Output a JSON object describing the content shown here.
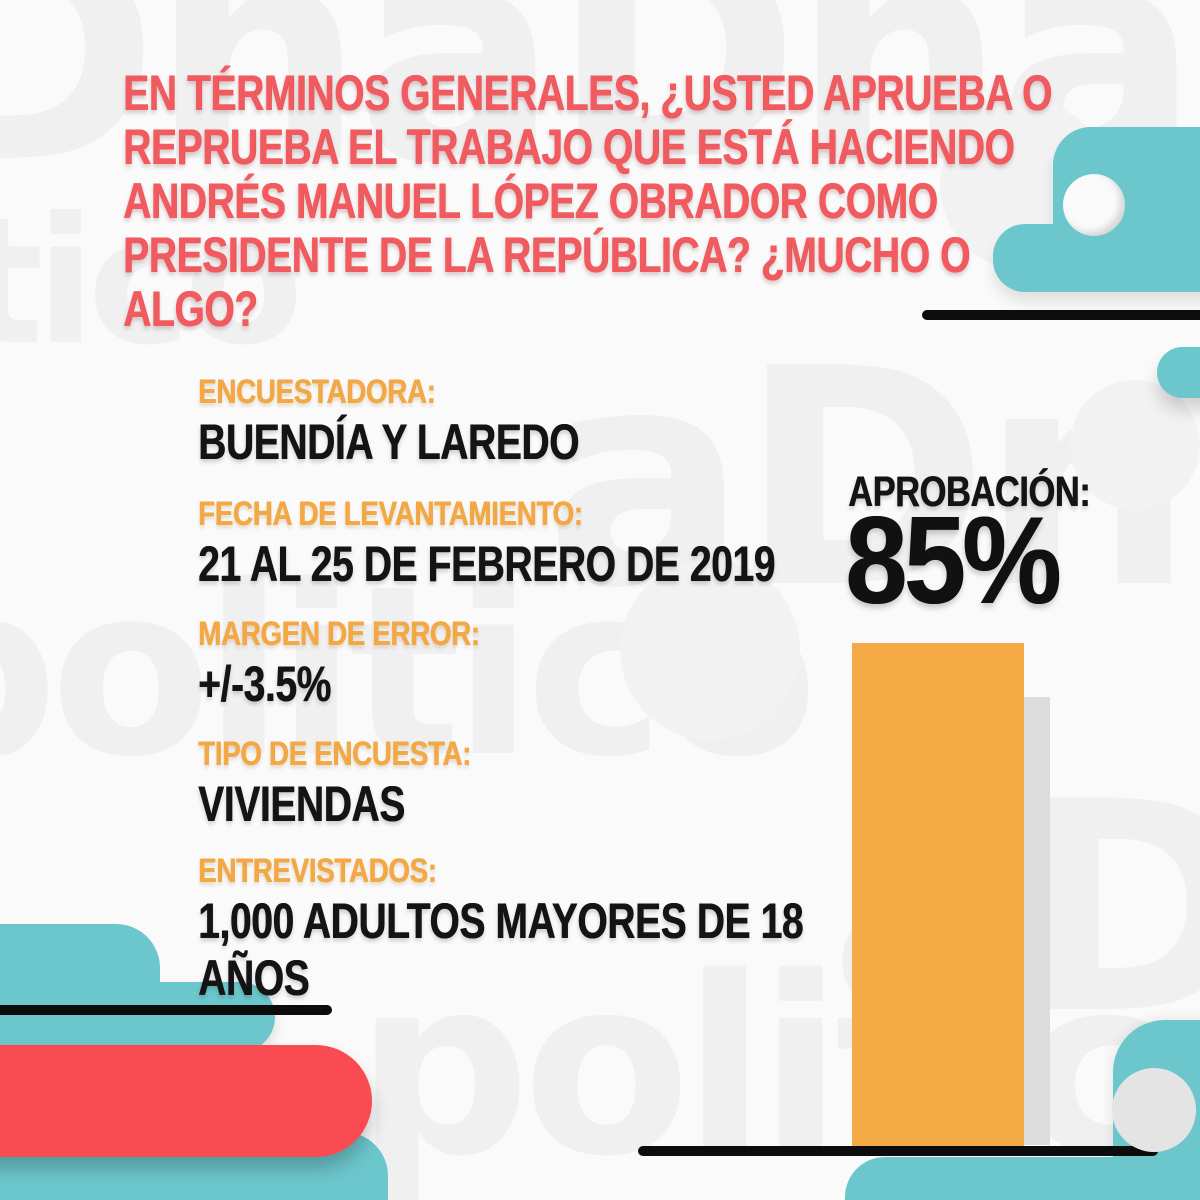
{
  "question": {
    "lines": [
      "EN TÉRMINOS GENERALES, ¿USTED APRUEBA O",
      "REPRUEBA EL TRABAJO QUE ESTÁ HACIENDO",
      "ANDRÉS MANUEL LÓPEZ OBRADOR COMO",
      "PRESIDENTE DE LA REPÚBLICA? ¿MUCHO O",
      "ALGO?"
    ]
  },
  "methodology": {
    "items": [
      {
        "label": "ENCUESTADORA:",
        "value": "BUENDÍA Y LAREDO"
      },
      {
        "label": "FECHA DE LEVANTAMIENTO:",
        "value": "21 AL 25 DE FEBRERO DE 2019"
      },
      {
        "label": "MARGEN DE ERROR:",
        "value": "+/-3.5%"
      },
      {
        "label": "TIPO DE ENCUESTA:",
        "value": "VIVIENDAS"
      },
      {
        "label": "ENTREVISTADOS:",
        "value": "1,000 ADULTOS MAYORES DE 18 AÑOS"
      }
    ]
  },
  "approval": {
    "label": "APROBACIÓN:",
    "value": "85%"
  },
  "chart_data": {
    "type": "bar",
    "categories": [
      "APROBACIÓN"
    ],
    "values": [
      85
    ],
    "unit": "%",
    "ylim": [
      0,
      100
    ],
    "title": "APROBACIÓN: 85%",
    "bar_color": "#F5AB45",
    "orientation": "vertical",
    "legend": "none",
    "grid": false
  },
  "watermark": {
    "w1": "DnaDnaDn",
    "w2": "tico",
    "w3": "aDn",
    "w4": "politico",
    "w5": "aDn",
    "w6": "politico"
  },
  "colors": {
    "background": "#FAFAFA",
    "question_coral": "#F15A5E",
    "label_orange": "#F3A843",
    "value_black": "#141414",
    "bar_orange": "#F5AB45",
    "bar_shadow_gray": "#DCDCDC",
    "teal": "#6CC7CD",
    "ribbon_red": "#FA4A52",
    "rule_black": "#0C0C0C",
    "watermark_gray": "#F0F0F1"
  }
}
